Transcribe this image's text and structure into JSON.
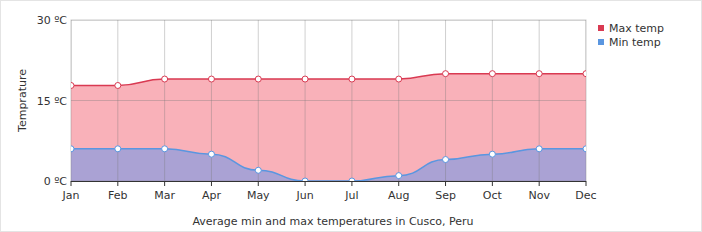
{
  "chart_data": {
    "type": "area",
    "title": "Average min and max temperatures in Cusco, Peru",
    "y_label": "Temprature",
    "categories": [
      "Jan",
      "Feb",
      "Mar",
      "Apr",
      "May",
      "Jun",
      "Jul",
      "Aug",
      "Sep",
      "Oct",
      "Nov",
      "Dec"
    ],
    "series": [
      {
        "name": "Max temp",
        "color": "#d93a52",
        "values": [
          17.8,
          17.8,
          19,
          19,
          19,
          19,
          19,
          19,
          20,
          20,
          20,
          20
        ]
      },
      {
        "name": "Min temp",
        "color": "#5a96e0",
        "values": [
          6,
          6,
          6,
          5,
          2,
          0,
          0,
          1,
          4,
          5,
          6,
          6
        ]
      }
    ],
    "ylim": [
      0,
      30
    ],
    "yticks": [
      {
        "value": 0,
        "label": "0 ºC"
      },
      {
        "value": 15,
        "label": "15 ºC"
      },
      {
        "value": 30,
        "label": "30 ºC"
      }
    ],
    "grid": true,
    "legend": "right",
    "marker": "circle",
    "line_style": "smooth"
  }
}
